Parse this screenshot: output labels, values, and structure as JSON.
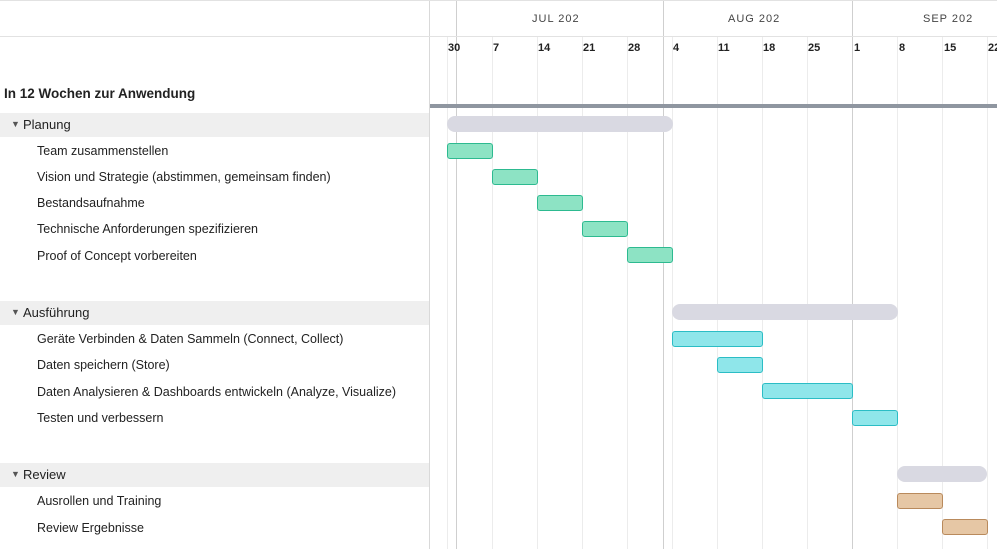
{
  "months": [
    {
      "label": "JUL 202"
    },
    {
      "label": "AUG 202"
    },
    {
      "label": "SEP 202"
    }
  ],
  "weeks": [
    "30",
    "7",
    "14",
    "21",
    "28",
    "4",
    "11",
    "18",
    "25",
    "1",
    "8",
    "15",
    "22"
  ],
  "project": {
    "title": "In 12 Wochen zur Anwendung"
  },
  "groups": [
    {
      "label": "Planung",
      "color": "#8de3c4",
      "border": "#2dba90",
      "tasks": [
        "Team zusammenstellen",
        "Vision und Strategie (abstimmen, gemeinsam finden)",
        "Bestandsaufnahme",
        "Technische Anforderungen spezifizieren",
        "Proof of Concept vorbereiten"
      ]
    },
    {
      "label": "Ausführung",
      "color": "#8fe6ea",
      "border": "#2bbdc5",
      "tasks": [
        "Geräte Verbinden & Daten Sammeln (Connect, Collect)",
        "Daten speichern (Store)",
        "Daten Analysieren & Dashboards entwickeln (Analyze, Visualize)",
        "Testen und verbessern"
      ]
    },
    {
      "label": "Review",
      "color": "#e6c7a5",
      "border": "#b98a5c",
      "tasks": [
        "Ausrollen und Training",
        "Review Ergebnisse"
      ]
    }
  ]
}
